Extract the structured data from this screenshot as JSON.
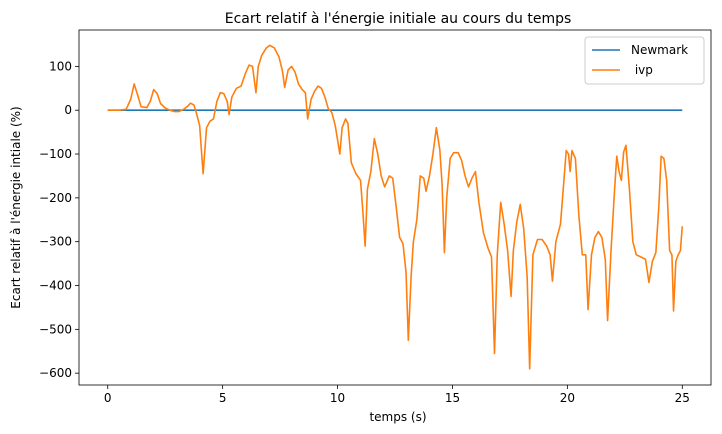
{
  "chart_data": {
    "type": "line",
    "title": "Ecart relatif à l'énergie initiale au cours du temps",
    "xlabel": "temps (s)",
    "ylabel": "Ecart relatif à l'énergie intiale (%)",
    "xlim": [
      -1.25,
      26.25
    ],
    "ylim": [
      -627,
      183
    ],
    "xticks": [
      0,
      5,
      10,
      15,
      20,
      25
    ],
    "xtick_labels": [
      "0",
      "5",
      "10",
      "15",
      "20",
      "25"
    ],
    "yticks": [
      100,
      0,
      -100,
      -200,
      -300,
      -400,
      -500,
      -600
    ],
    "ytick_labels": [
      "100",
      "0",
      "−100",
      "−200",
      "−300",
      "−400",
      "−500",
      "−600"
    ],
    "grid": false,
    "legend_position": "top-right",
    "series": [
      {
        "name": "Newmark",
        "color": "#1f77b4",
        "points": [
          [
            0,
            0
          ],
          [
            25,
            0
          ]
        ]
      },
      {
        "name": " ivp",
        "color": "#ff7f0e",
        "points": [
          [
            0.0,
            0
          ],
          [
            0.5,
            0
          ],
          [
            0.8,
            2
          ],
          [
            1.0,
            25
          ],
          [
            1.15,
            60
          ],
          [
            1.3,
            35
          ],
          [
            1.45,
            8
          ],
          [
            1.7,
            6
          ],
          [
            1.85,
            20
          ],
          [
            2.0,
            47
          ],
          [
            2.15,
            38
          ],
          [
            2.3,
            15
          ],
          [
            2.5,
            5
          ],
          [
            2.7,
            0
          ],
          [
            2.9,
            -3
          ],
          [
            3.1,
            -3
          ],
          [
            3.3,
            2
          ],
          [
            3.5,
            10
          ],
          [
            3.6,
            16
          ],
          [
            3.75,
            12
          ],
          [
            3.85,
            -5
          ],
          [
            4.0,
            -35
          ],
          [
            4.15,
            -145
          ],
          [
            4.3,
            -40
          ],
          [
            4.45,
            -25
          ],
          [
            4.6,
            -20
          ],
          [
            4.75,
            20
          ],
          [
            4.9,
            40
          ],
          [
            5.05,
            38
          ],
          [
            5.2,
            20
          ],
          [
            5.28,
            -10
          ],
          [
            5.4,
            30
          ],
          [
            5.6,
            50
          ],
          [
            5.8,
            55
          ],
          [
            6.0,
            85
          ],
          [
            6.15,
            103
          ],
          [
            6.3,
            100
          ],
          [
            6.45,
            40
          ],
          [
            6.55,
            100
          ],
          [
            6.7,
            125
          ],
          [
            6.9,
            142
          ],
          [
            7.05,
            148
          ],
          [
            7.25,
            142
          ],
          [
            7.45,
            122
          ],
          [
            7.6,
            90
          ],
          [
            7.7,
            52
          ],
          [
            7.85,
            92
          ],
          [
            8.0,
            100
          ],
          [
            8.15,
            87
          ],
          [
            8.3,
            60
          ],
          [
            8.45,
            48
          ],
          [
            8.6,
            40
          ],
          [
            8.7,
            -20
          ],
          [
            8.85,
            25
          ],
          [
            9.0,
            43
          ],
          [
            9.15,
            55
          ],
          [
            9.3,
            50
          ],
          [
            9.45,
            30
          ],
          [
            9.6,
            3
          ],
          [
            9.75,
            -5
          ],
          [
            9.9,
            -35
          ],
          [
            10.1,
            -100
          ],
          [
            10.2,
            -40
          ],
          [
            10.35,
            -20
          ],
          [
            10.45,
            -30
          ],
          [
            10.6,
            -120
          ],
          [
            10.8,
            -145
          ],
          [
            11.0,
            -160
          ],
          [
            11.1,
            -230
          ],
          [
            11.2,
            -310
          ],
          [
            11.3,
            -180
          ],
          [
            11.45,
            -140
          ],
          [
            11.6,
            -65
          ],
          [
            11.75,
            -100
          ],
          [
            11.9,
            -150
          ],
          [
            12.05,
            -175
          ],
          [
            12.25,
            -150
          ],
          [
            12.4,
            -155
          ],
          [
            12.55,
            -220
          ],
          [
            12.7,
            -290
          ],
          [
            12.85,
            -305
          ],
          [
            12.98,
            -370
          ],
          [
            13.08,
            -525
          ],
          [
            13.2,
            -380
          ],
          [
            13.3,
            -300
          ],
          [
            13.45,
            -250
          ],
          [
            13.6,
            -150
          ],
          [
            13.75,
            -155
          ],
          [
            13.85,
            -185
          ],
          [
            14.0,
            -150
          ],
          [
            14.15,
            -100
          ],
          [
            14.3,
            -40
          ],
          [
            14.45,
            -90
          ],
          [
            14.55,
            -170
          ],
          [
            14.65,
            -325
          ],
          [
            14.75,
            -200
          ],
          [
            14.9,
            -110
          ],
          [
            15.05,
            -97
          ],
          [
            15.25,
            -97
          ],
          [
            15.4,
            -115
          ],
          [
            15.55,
            -150
          ],
          [
            15.7,
            -175
          ],
          [
            15.85,
            -155
          ],
          [
            16.0,
            -140
          ],
          [
            16.15,
            -210
          ],
          [
            16.35,
            -280
          ],
          [
            16.55,
            -315
          ],
          [
            16.7,
            -335
          ],
          [
            16.83,
            -555
          ],
          [
            16.95,
            -330
          ],
          [
            17.1,
            -210
          ],
          [
            17.25,
            -260
          ],
          [
            17.4,
            -320
          ],
          [
            17.55,
            -425
          ],
          [
            17.65,
            -320
          ],
          [
            17.8,
            -255
          ],
          [
            17.95,
            -215
          ],
          [
            18.1,
            -270
          ],
          [
            18.25,
            -380
          ],
          [
            18.36,
            -590
          ],
          [
            18.5,
            -330
          ],
          [
            18.7,
            -295
          ],
          [
            18.9,
            -295
          ],
          [
            19.1,
            -310
          ],
          [
            19.25,
            -330
          ],
          [
            19.35,
            -390
          ],
          [
            19.5,
            -300
          ],
          [
            19.7,
            -260
          ],
          [
            19.85,
            -160
          ],
          [
            19.95,
            -92
          ],
          [
            20.05,
            -100
          ],
          [
            20.12,
            -140
          ],
          [
            20.2,
            -92
          ],
          [
            20.35,
            -110
          ],
          [
            20.5,
            -240
          ],
          [
            20.65,
            -330
          ],
          [
            20.8,
            -330
          ],
          [
            20.9,
            -455
          ],
          [
            21.05,
            -330
          ],
          [
            21.2,
            -290
          ],
          [
            21.35,
            -277
          ],
          [
            21.5,
            -290
          ],
          [
            21.65,
            -340
          ],
          [
            21.75,
            -480
          ],
          [
            21.9,
            -320
          ],
          [
            22.05,
            -185
          ],
          [
            22.15,
            -105
          ],
          [
            22.25,
            -140
          ],
          [
            22.35,
            -160
          ],
          [
            22.45,
            -95
          ],
          [
            22.55,
            -80
          ],
          [
            22.7,
            -180
          ],
          [
            22.85,
            -300
          ],
          [
            23.0,
            -330
          ],
          [
            23.2,
            -335
          ],
          [
            23.4,
            -340
          ],
          [
            23.55,
            -393
          ],
          [
            23.7,
            -345
          ],
          [
            23.85,
            -325
          ],
          [
            23.98,
            -220
          ],
          [
            24.08,
            -105
          ],
          [
            24.2,
            -110
          ],
          [
            24.32,
            -160
          ],
          [
            24.45,
            -320
          ],
          [
            24.55,
            -330
          ],
          [
            24.62,
            -458
          ],
          [
            24.72,
            -345
          ],
          [
            24.82,
            -330
          ],
          [
            24.92,
            -320
          ],
          [
            25.0,
            -265
          ]
        ]
      }
    ]
  }
}
